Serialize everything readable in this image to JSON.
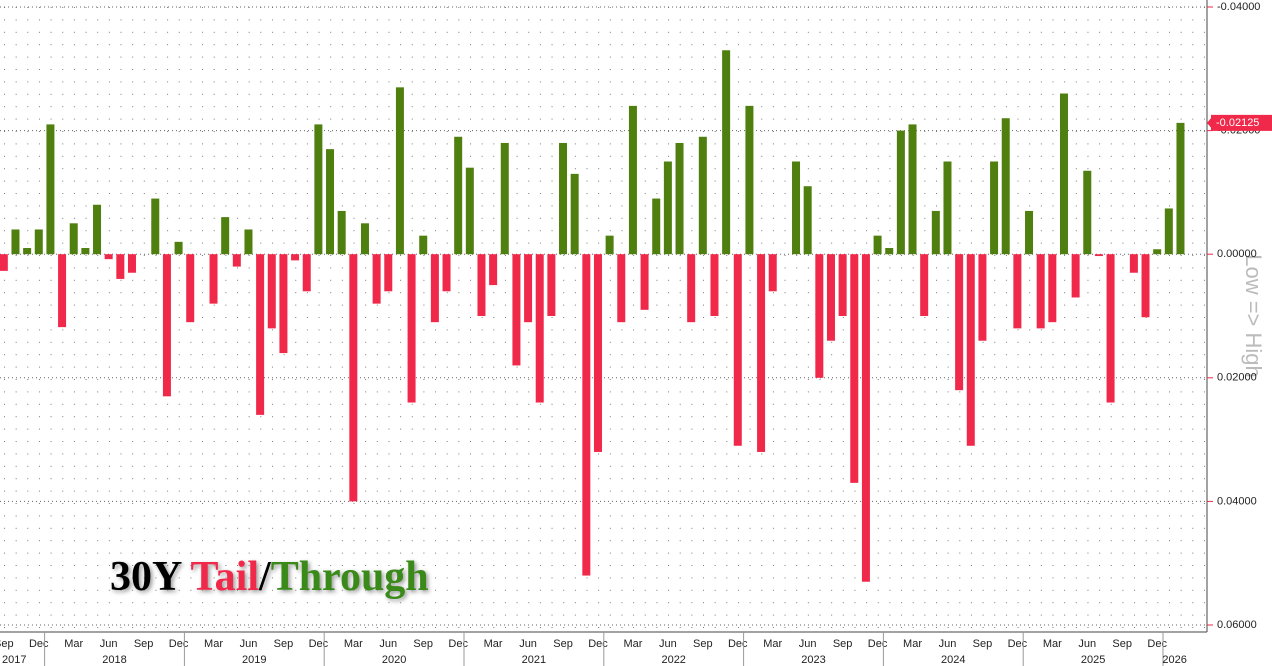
{
  "chart_data": {
    "type": "bar",
    "title_parts": [
      "30Y ",
      "Tail",
      "/",
      "Through"
    ],
    "title_colors": [
      "#000000",
      "#f0284a",
      "#000000",
      "#3a8a1a"
    ],
    "y_axis_label": "Low => High",
    "categories": [
      "Sep",
      null,
      null,
      "Dec",
      null,
      null,
      "Mar",
      null,
      null,
      "Jun",
      null,
      null,
      "Sep",
      null,
      null,
      "Dec",
      null,
      null,
      "Mar",
      null,
      null,
      "Jun",
      null,
      null,
      "Sep",
      null,
      null,
      "Dec",
      null,
      null,
      "Mar",
      null,
      null,
      "Jun",
      null,
      null,
      "Sep",
      null,
      null,
      "Dec",
      null,
      null,
      "Mar",
      null,
      null,
      "Jun",
      null,
      null,
      "Sep",
      null,
      null,
      "Dec",
      null,
      null,
      "Mar",
      null,
      null,
      "Jun",
      null,
      null,
      "Sep",
      null,
      null,
      "Dec",
      null,
      null,
      "Mar",
      null,
      null,
      "Jun",
      null,
      null,
      "Sep",
      null,
      null,
      "Dec",
      null,
      null,
      "Mar",
      null,
      null,
      "Jun",
      null,
      null,
      "Sep",
      null,
      null,
      "Dec",
      null,
      null,
      "Mar",
      null,
      null,
      "Jun",
      null,
      null,
      "Sep",
      null,
      null,
      "Dec",
      null,
      null
    ],
    "year_labels": [
      "2017",
      "2018",
      "2019",
      "2020",
      "2021",
      "2022",
      "2023",
      "2024",
      "2025",
      "2026"
    ],
    "values": [
      0.0027,
      -0.004,
      -0.001,
      -0.004,
      -0.021,
      0.0118,
      -0.005,
      -0.001,
      -0.008,
      0.0008,
      0.004,
      0.003,
      0,
      -0.009,
      0.023,
      -0.002,
      0.011,
      0,
      0.008,
      -0.006,
      0.002,
      -0.004,
      0.026,
      0.012,
      0.016,
      0.001,
      0.006,
      -0.021,
      -0.017,
      -0.007,
      0.04,
      -0.005,
      0.008,
      0.006,
      -0.027,
      0.024,
      -0.003,
      0.011,
      0.006,
      -0.019,
      -0.014,
      0.01,
      0.005,
      -0.018,
      0.018,
      0.011,
      0.024,
      0.01,
      -0.018,
      -0.013,
      0.052,
      0.032,
      -0.003,
      0.011,
      -0.024,
      0.009,
      -0.009,
      -0.015,
      -0.018,
      0.011,
      -0.019,
      0.01,
      -0.033,
      0.031,
      -0.024,
      0.032,
      0.006,
      0,
      -0.015,
      -0.011,
      0.02,
      0.014,
      0.01,
      0.037,
      0.053,
      -0.003,
      -0.001,
      -0.02,
      -0.021,
      0.01,
      -0.007,
      -0.015,
      0.022,
      0.031,
      0.014,
      -0.015,
      -0.022,
      0.012,
      -0.007,
      0.012,
      0.011,
      -0.026,
      0.007,
      -0.0135,
      0.0003,
      0.024,
      0,
      0.003,
      0.0102,
      -0.0008,
      -0.0074,
      -0.02125
    ],
    "value_labels": [
      null,
      null,
      null,
      null,
      null,
      null,
      null,
      null,
      null,
      null,
      null,
      null,
      null,
      null,
      null,
      null,
      null,
      null,
      null,
      null,
      null,
      null,
      null,
      null,
      null,
      null,
      null,
      null,
      null,
      null,
      null,
      null,
      null,
      null,
      null,
      null,
      null,
      null,
      null,
      null,
      null,
      null,
      null,
      null,
      null,
      null,
      null,
      null,
      null,
      null,
      null,
      null,
      null,
      null,
      null,
      null,
      null,
      null,
      null,
      null,
      null,
      null,
      null,
      null,
      null,
      null,
      null,
      null,
      null,
      null,
      null,
      null,
      null,
      null,
      null,
      null,
      null,
      null,
      null,
      null,
      null,
      null,
      null,
      null,
      null,
      null,
      null,
      null,
      null,
      null,
      null,
      null,
      null,
      null,
      null,
      null,
      null,
      null,
      null,
      null,
      null,
      "-0.02125"
    ],
    "positive_color": "#f0284a",
    "negative_color": "#4f7f0e",
    "ylim": [
      -0.04,
      0.06
    ],
    "y_inverted": true,
    "yticks": [
      {
        "value": -0.04,
        "label": "-0.04000"
      },
      {
        "value": -0.02,
        "label": "-0.02000"
      },
      {
        "value": 0,
        "label": "0.00000"
      },
      {
        "value": 0.02,
        "label": "0.02000"
      },
      {
        "value": 0.04,
        "label": "0.04000"
      },
      {
        "value": 0.06,
        "label": "0.06000"
      }
    ],
    "grid": true
  }
}
